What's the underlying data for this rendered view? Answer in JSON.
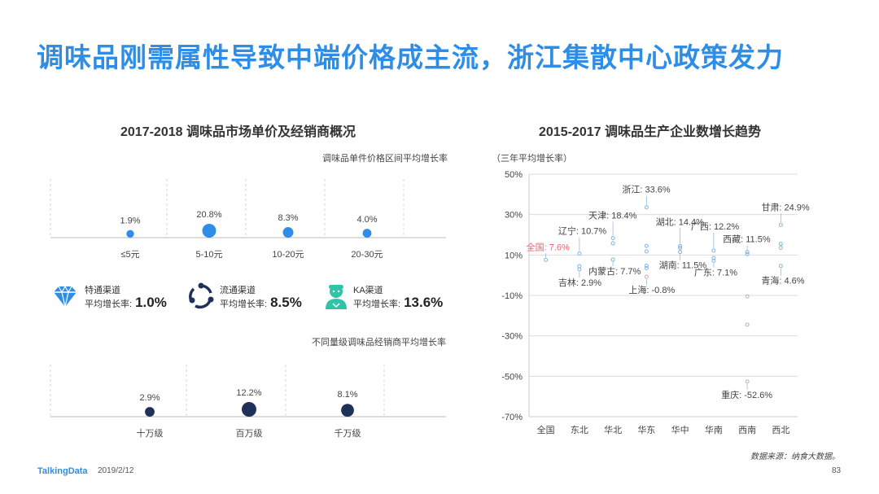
{
  "title": "调味品刚需属性导致中端价格成主流，浙江集散中心政策发力",
  "left": {
    "title": "2017-2018  调味品市场单价及经销商概况",
    "price_chart": {
      "subtitle": "调味品单件价格区间平均增长率",
      "chart_data": {
        "type": "scatter",
        "categories": [
          "≤5元",
          "5-10元",
          "10-20元",
          "20-30元"
        ],
        "values": [
          1.9,
          20.8,
          8.3,
          4.0
        ],
        "labels": [
          "1.9%",
          "20.8%",
          "8.3%",
          "4.0%"
        ],
        "color": "#2e8de6"
      }
    },
    "channels": [
      {
        "icon": "diamond-icon",
        "name": "特通渠道",
        "rate_label": "平均增长率:",
        "value": "1.0%"
      },
      {
        "icon": "circulation-icon",
        "name": "流通渠道",
        "rate_label": "平均增长率:",
        "value": "8.5%"
      },
      {
        "icon": "person-icon",
        "name": "KA渠道",
        "rate_label": "平均增长率:",
        "value": "13.6%"
      }
    ],
    "dealer_chart": {
      "subtitle": "不同量级调味品经销商平均增长率",
      "chart_data": {
        "type": "scatter",
        "categories": [
          "十万级",
          "百万级",
          "千万级"
        ],
        "values": [
          2.9,
          12.2,
          8.1
        ],
        "labels": [
          "2.9%",
          "12.2%",
          "8.1%"
        ],
        "color": "#1f3158"
      }
    }
  },
  "right": {
    "title": "2015-2017  调味品生产企业数增长趋势",
    "unit": "（三年平均增长率）",
    "chart_data": {
      "type": "scatter",
      "categories": [
        "全国",
        "东北",
        "华北",
        "华东",
        "华中",
        "华南",
        "西南",
        "西北"
      ],
      "ylim": [
        -70,
        50
      ],
      "yticks": [
        "50%",
        "30%",
        "10%",
        "-10%",
        "-30%",
        "-50%",
        "-70%"
      ],
      "ytick_values": [
        50,
        30,
        10,
        -10,
        -30,
        -50,
        -70
      ],
      "points": [
        {
          "cat": 0,
          "y": 7.6
        },
        {
          "cat": 1,
          "y": 10.7
        },
        {
          "cat": 1,
          "y": 2.9
        },
        {
          "cat": 1,
          "y": 4.5
        },
        {
          "cat": 2,
          "y": 18.4
        },
        {
          "cat": 2,
          "y": 15.8
        },
        {
          "cat": 2,
          "y": 7.7
        },
        {
          "cat": 3,
          "y": 33.6
        },
        {
          "cat": 3,
          "y": 14.5
        },
        {
          "cat": 3,
          "y": 11.8
        },
        {
          "cat": 3,
          "y": 4.7
        },
        {
          "cat": 3,
          "y": 3.5
        },
        {
          "cat": 3,
          "y": -0.8
        },
        {
          "cat": 4,
          "y": 14.4
        },
        {
          "cat": 4,
          "y": 13.5
        },
        {
          "cat": 4,
          "y": 11.5
        },
        {
          "cat": 5,
          "y": 12.2
        },
        {
          "cat": 5,
          "y": 8.5
        },
        {
          "cat": 5,
          "y": 7.1
        },
        {
          "cat": 6,
          "y": 11.5
        },
        {
          "cat": 6,
          "y": 10.5
        },
        {
          "cat": 6,
          "y": -10.5
        },
        {
          "cat": 6,
          "y": -24.5
        },
        {
          "cat": 6,
          "y": -52.6
        },
        {
          "cat": 7,
          "y": 24.9
        },
        {
          "cat": 7,
          "y": 15.5
        },
        {
          "cat": 7,
          "y": 13.5
        },
        {
          "cat": 7,
          "y": 4.6
        }
      ],
      "annotations": [
        {
          "text": "全国: 7.6%",
          "cat": 0,
          "y": 7.6,
          "dx": -24,
          "dy": -12,
          "color": "#e8626e"
        },
        {
          "text": "辽宁: 10.7%",
          "cat": 1,
          "y": 10.7,
          "dx": -26,
          "dy": -24,
          "color": "#444"
        },
        {
          "text": "吉林: 2.9%",
          "cat": 1,
          "y": 2.9,
          "dx": -26,
          "dy": 20,
          "color": "#444"
        },
        {
          "text": "天津: 18.4%",
          "cat": 2,
          "y": 18.4,
          "dx": -30,
          "dy": -24,
          "color": "#444"
        },
        {
          "text": "内蒙古: 7.7%",
          "cat": 2,
          "y": 7.7,
          "dx": -30,
          "dy": 18,
          "color": "#444"
        },
        {
          "text": "浙江: 33.6%",
          "cat": 3,
          "y": 33.6,
          "dx": -30,
          "dy": -18,
          "color": "#444"
        },
        {
          "text": "上海: -0.8%",
          "cat": 3,
          "y": -0.8,
          "dx": -22,
          "dy": 20,
          "color": "#444"
        },
        {
          "text": "湖北: 14.4%",
          "cat": 4,
          "y": 14.4,
          "dx": -30,
          "dy": -26,
          "color": "#444"
        },
        {
          "text": "湖南: 11.5%",
          "cat": 4,
          "y": 11.5,
          "dx": -26,
          "dy": 20,
          "color": "#444"
        },
        {
          "text": "广西: 12.2%",
          "cat": 5,
          "y": 12.2,
          "dx": -28,
          "dy": -26,
          "color": "#444"
        },
        {
          "text": "广东: 7.1%",
          "cat": 5,
          "y": 7.1,
          "dx": -24,
          "dy": 18,
          "color": "#444"
        },
        {
          "text": "西藏: 11.5%",
          "cat": 6,
          "y": 11.5,
          "dx": -30,
          "dy": -12,
          "color": "#444"
        },
        {
          "text": "重庆: -52.6%",
          "cat": 6,
          "y": -52.6,
          "dx": -32,
          "dy": 20,
          "color": "#444"
        },
        {
          "text": "甘肃: 24.9%",
          "cat": 7,
          "y": 24.9,
          "dx": -24,
          "dy": -18,
          "color": "#444"
        },
        {
          "text": "青海: 4.6%",
          "cat": 7,
          "y": 4.6,
          "dx": -24,
          "dy": 22,
          "color": "#444"
        }
      ]
    },
    "source": "数据来源：纳食大数据。"
  },
  "footer": {
    "brand": "TalkingData",
    "date": "2019/2/12",
    "page": "83"
  }
}
